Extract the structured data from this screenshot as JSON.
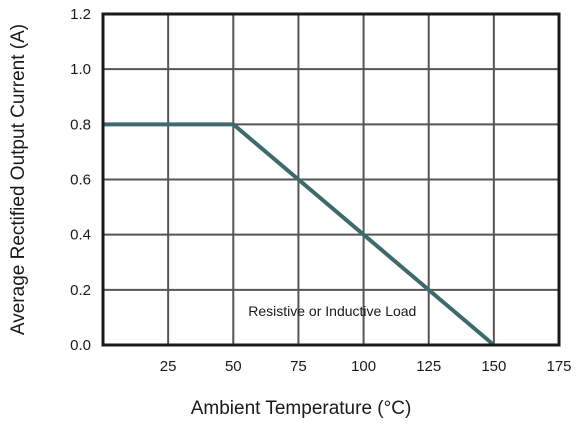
{
  "chart_data": {
    "type": "line",
    "title": "",
    "xlabel": "Ambient Temperature (°C)",
    "ylabel": "Average Rectified Output Current (A)",
    "xlim": [
      0,
      175
    ],
    "ylim": [
      0,
      1.2
    ],
    "x_ticks": [
      25,
      50,
      75,
      100,
      125,
      150,
      175
    ],
    "x_tick_labels": [
      "25",
      "50",
      "75",
      "100",
      "125",
      "150",
      "175"
    ],
    "y_ticks": [
      0,
      0.2,
      0.4,
      0.6,
      0.8,
      1.0,
      1.2
    ],
    "y_tick_labels": [
      "0.0",
      "0.2",
      "0.4",
      "0.6",
      "0.8",
      "1.0",
      "1.2"
    ],
    "grid": true,
    "legend": "none",
    "series": [
      {
        "color": "#3d6b6b",
        "x": [
          0,
          50,
          150
        ],
        "y": [
          0.8,
          0.8,
          0
        ]
      }
    ],
    "annotations": [
      {
        "text": "Resistive or Inductive Load",
        "x": 88,
        "y": 0.105
      }
    ],
    "colors": {
      "grid": "#555555",
      "frame": "#1a1a1a",
      "line": "#3d6b6b"
    }
  }
}
